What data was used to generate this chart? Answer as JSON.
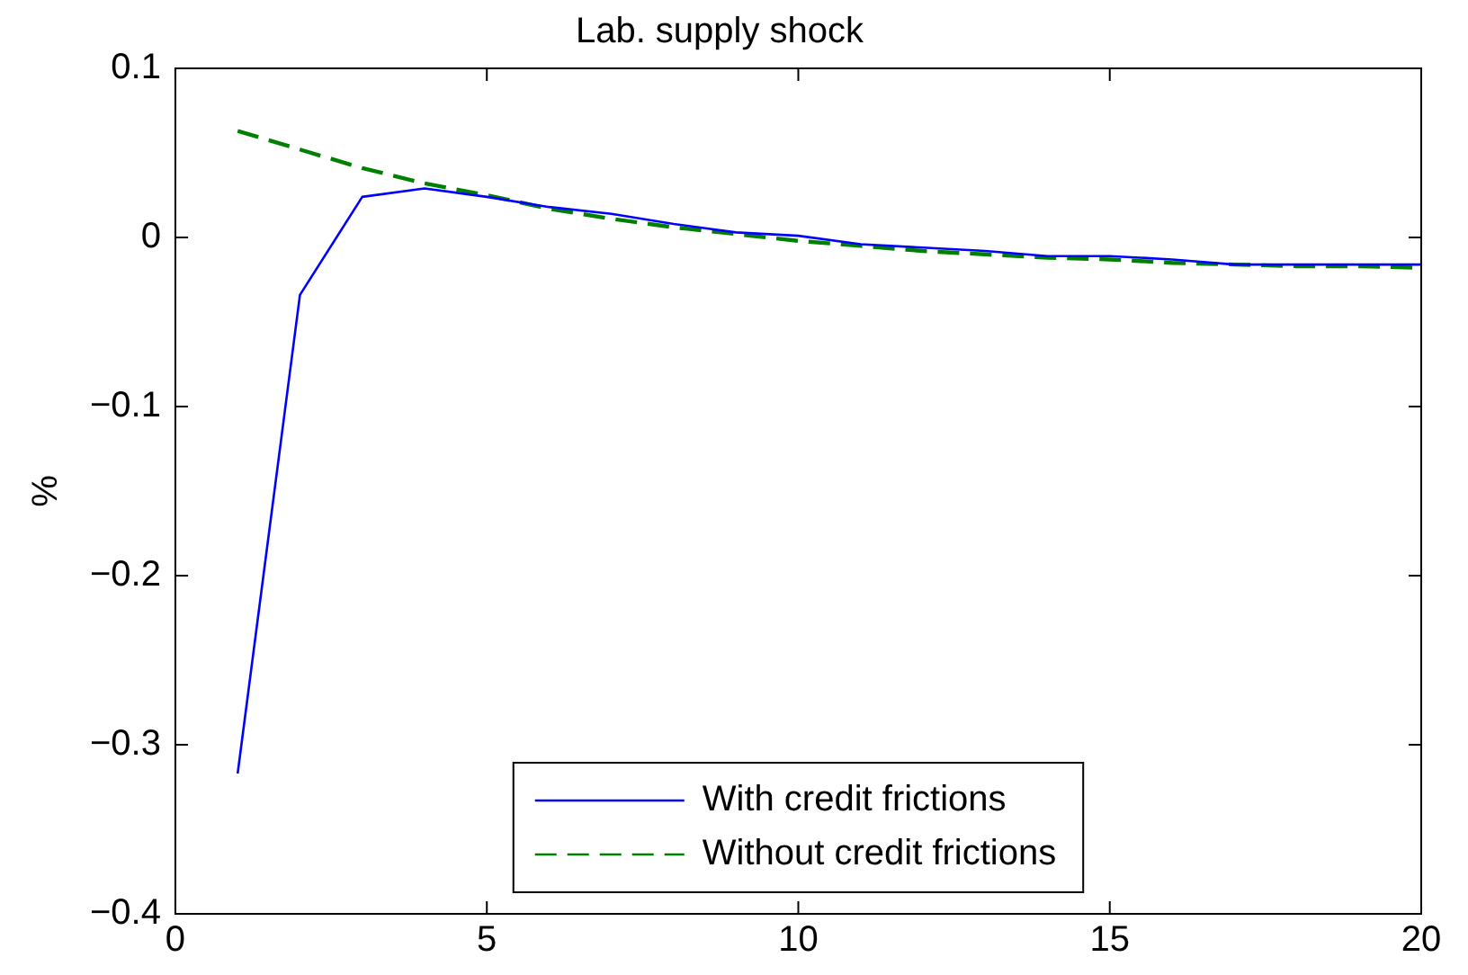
{
  "chart_data": {
    "type": "line",
    "title": "Lab. supply shock",
    "ylabel": "%",
    "x": [
      1,
      2,
      3,
      4,
      5,
      6,
      7,
      8,
      9,
      10,
      11,
      12,
      13,
      14,
      15,
      16,
      17,
      18,
      19,
      20
    ],
    "series": [
      {
        "name": "With credit frictions",
        "color": "#0000ff",
        "line_style": "solid",
        "values": [
          -0.317,
          -0.034,
          0.024,
          0.029,
          0.024,
          0.018,
          0.014,
          0.008,
          0.003,
          0.001,
          -0.004,
          -0.006,
          -0.008,
          -0.011,
          -0.011,
          -0.013,
          -0.016,
          -0.016,
          -0.016,
          -0.016
        ]
      },
      {
        "name": "Without credit frictions",
        "color": "#008000",
        "line_style": "dashed",
        "values": [
          0.063,
          0.052,
          0.041,
          0.032,
          0.025,
          0.017,
          0.011,
          0.006,
          0.002,
          -0.002,
          -0.005,
          -0.008,
          -0.01,
          -0.012,
          -0.013,
          -0.015,
          -0.016,
          -0.017,
          -0.017,
          -0.018
        ]
      }
    ],
    "xlim": [
      0,
      20
    ],
    "xticks": [
      0,
      5,
      10,
      15,
      20
    ],
    "ylim": [
      -0.4,
      0.1
    ],
    "yticks": [
      {
        "value": -0.4,
        "label": "−0.4"
      },
      {
        "value": -0.3,
        "label": "−0.3"
      },
      {
        "value": -0.2,
        "label": "−0.2"
      },
      {
        "value": -0.1,
        "label": "−0.1"
      },
      0,
      0.1
    ],
    "grid": false,
    "legend": "bottom",
    "marker": "none"
  }
}
